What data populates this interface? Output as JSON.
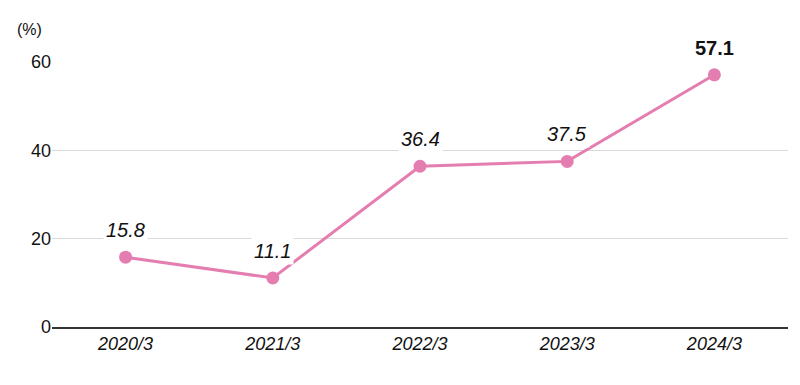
{
  "chart_data": {
    "type": "line",
    "y_label": "(%)",
    "categories": [
      "2020/3",
      "2021/3",
      "2022/3",
      "2023/3",
      "2024/3"
    ],
    "values": [
      15.8,
      11.1,
      36.4,
      37.5,
      57.1
    ],
    "color": "#e57eb0",
    "marker": "circle",
    "ylim": [
      0,
      60
    ],
    "yticks": [
      0,
      20,
      40,
      60
    ],
    "grid": true,
    "data_labels": true
  }
}
